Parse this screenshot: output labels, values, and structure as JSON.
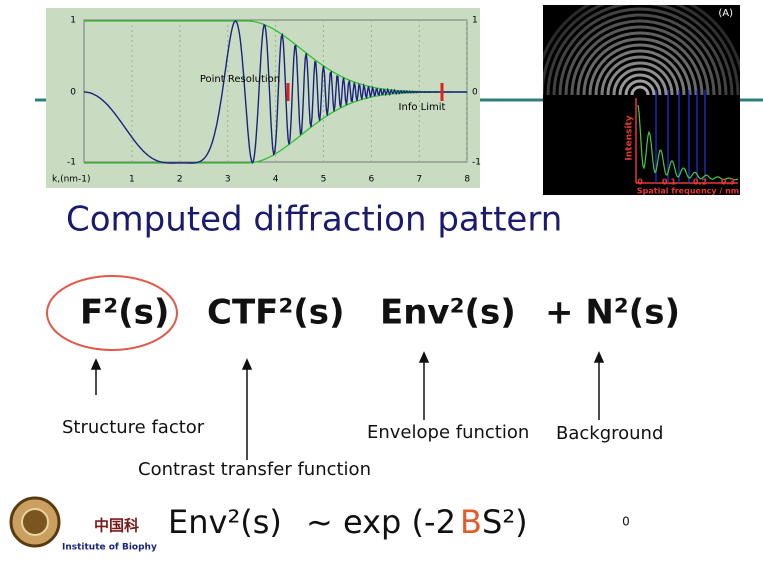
{
  "ctf_plot": {
    "y_ticks": [
      "1",
      "0",
      "-1"
    ],
    "y_ticks_right": [
      "1",
      "0",
      "-1"
    ],
    "x_axis_label": "k,(nm-1)",
    "x_ticks": [
      "1",
      "2",
      "3",
      "4",
      "5",
      "6",
      "7",
      "8"
    ],
    "annotations": [
      "Point Resolution",
      "Info Limit"
    ]
  },
  "diffraction_image": {
    "panel_label": "(A)",
    "y_axis_label": "Intensity",
    "x_ticks": [
      "0",
      "0.1",
      "0.2",
      "0.3"
    ],
    "x_axis_label": "Spatial frequency / nm"
  },
  "title": "Computed diffraction pattern",
  "equation": {
    "terms": [
      "F²(s)",
      "CTF²(s)",
      "Env²(s)",
      "+ N²(s)"
    ]
  },
  "labels": [
    "Structure factor",
    "Contrast transfer function",
    "Envelope function",
    "Background"
  ],
  "footer": {
    "org_cn": "中国科",
    "org_en": "Institute of Biophy",
    "formula_parts": [
      "Env²(s)",
      "~ exp (-2",
      "B",
      "S²)"
    ],
    "page_number": "0"
  }
}
